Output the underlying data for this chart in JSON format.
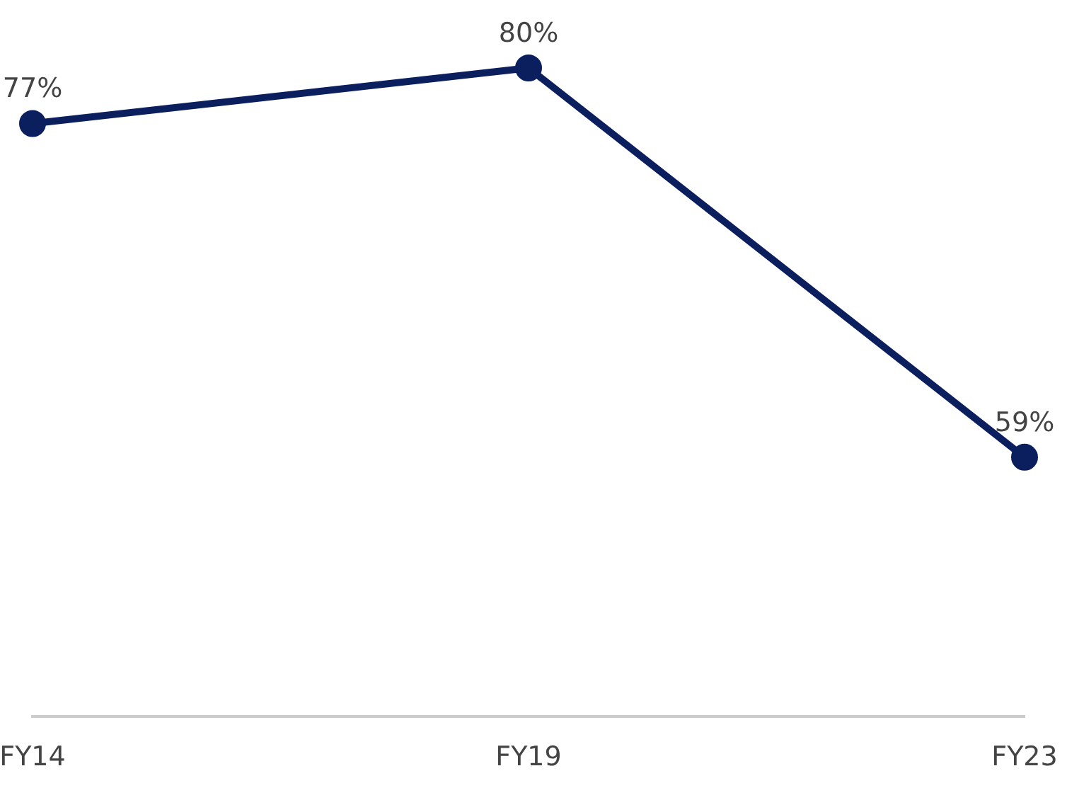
{
  "chart_data": {
    "type": "line",
    "categories": [
      "FY14",
      "FY19",
      "FY23"
    ],
    "series": [
      {
        "color": "#0b1f5e",
        "values": [
          77,
          80,
          59
        ],
        "value_labels": [
          "77%",
          "80%",
          "59%"
        ]
      }
    ],
    "marker": "circle",
    "line_style": "solid",
    "grid": false,
    "legend": false,
    "tick_labels": "x"
  }
}
